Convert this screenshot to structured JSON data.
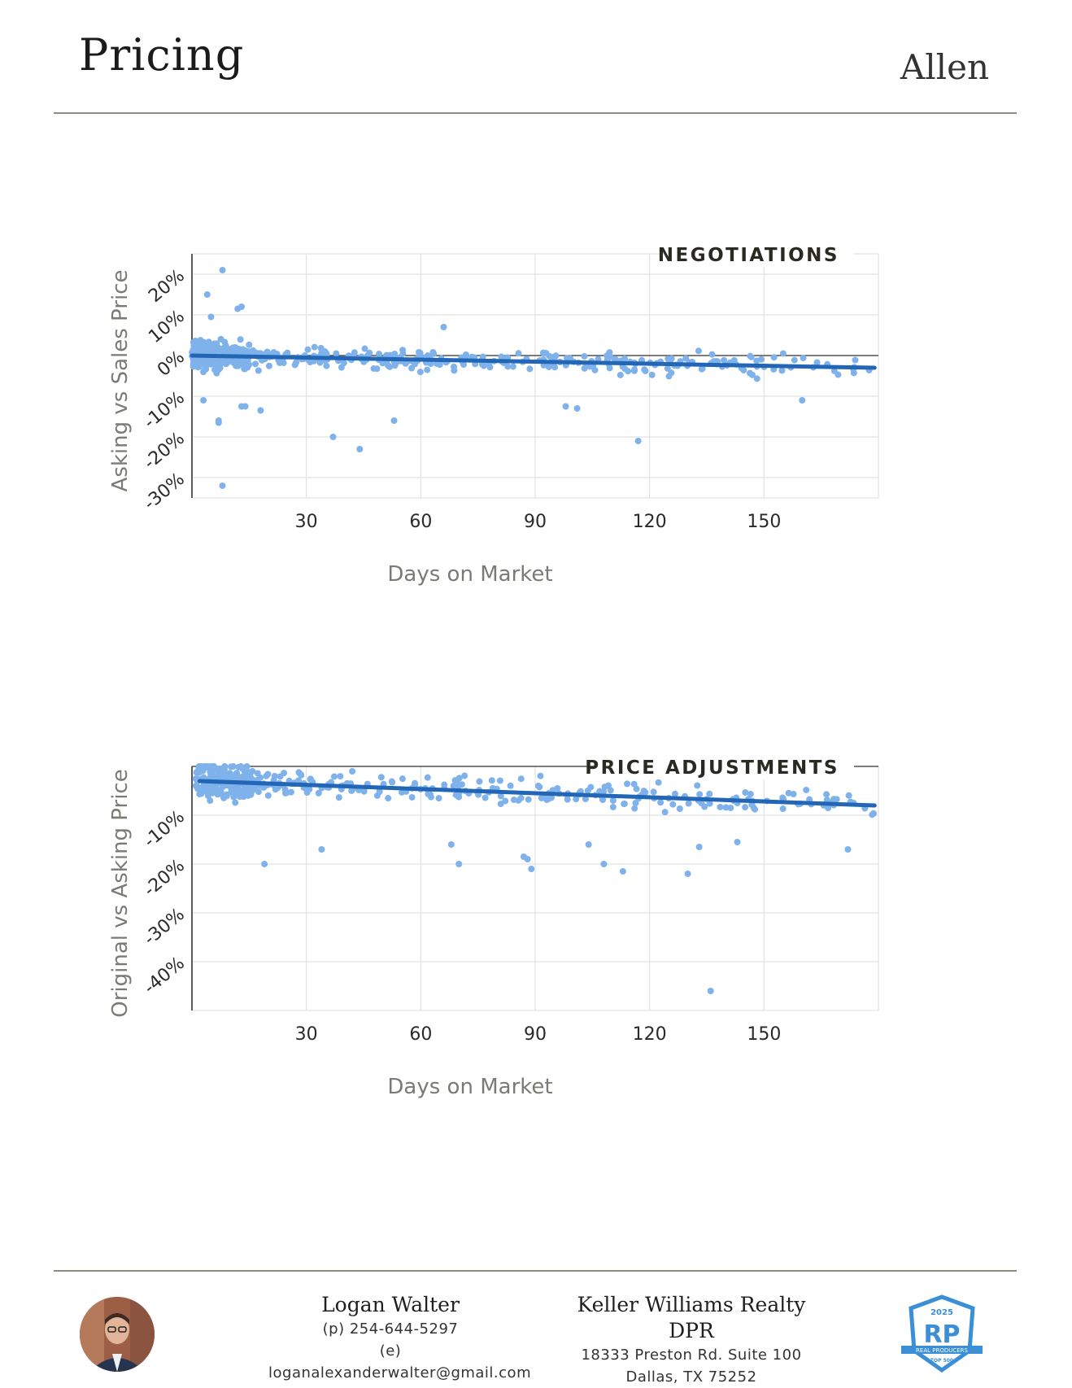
{
  "header": {
    "title": "Pricing",
    "city": "Allen"
  },
  "chart_data": [
    {
      "type": "scatter",
      "title": "NEGOTIATIONS",
      "xlabel": "Days on Market",
      "ylabel": "Asking vs Sales Price",
      "xlim": [
        0,
        180
      ],
      "ylim": [
        -35,
        25
      ],
      "xticks": [
        30,
        60,
        90,
        120,
        150
      ],
      "xtick_labels": [
        "30",
        "60",
        "90",
        "120",
        "150"
      ],
      "yticks": [
        20,
        10,
        0,
        -10,
        -20,
        -30
      ],
      "ytick_labels": [
        "20%",
        "10%",
        "0%",
        "-10%",
        "-20%",
        "-30%"
      ],
      "grid": true,
      "point_color": "#7fb2ea",
      "trend_color": "#2266b5",
      "trend": {
        "x": [
          0,
          179
        ],
        "y": [
          0,
          -3
        ]
      },
      "outliers": [
        {
          "x": 8,
          "y": 21
        },
        {
          "x": 4,
          "y": 15
        },
        {
          "x": 12,
          "y": 11.5
        },
        {
          "x": 13,
          "y": 12
        },
        {
          "x": 5,
          "y": 9.5
        },
        {
          "x": 8,
          "y": -32
        },
        {
          "x": 37,
          "y": -20
        },
        {
          "x": 44,
          "y": -23
        },
        {
          "x": 117,
          "y": -21
        },
        {
          "x": 53,
          "y": -16
        },
        {
          "x": 7,
          "y": -16
        },
        {
          "x": 7,
          "y": -16.5
        },
        {
          "x": 18,
          "y": -13.5
        },
        {
          "x": 13,
          "y": -12.5
        },
        {
          "x": 14,
          "y": -12.5
        },
        {
          "x": 3,
          "y": -11
        },
        {
          "x": 98,
          "y": -12.5
        },
        {
          "x": 101,
          "y": -13
        },
        {
          "x": 160,
          "y": -11
        },
        {
          "x": 66,
          "y": 7
        }
      ],
      "cluster": {
        "count": 520,
        "seed": 7,
        "x_range": [
          0,
          179
        ],
        "y_center": 0,
        "y_spread": 5
      }
    },
    {
      "type": "scatter",
      "title": "PRICE ADJUSTMENTS",
      "xlabel": "Days on Market",
      "ylabel": "Original vs Asking Price",
      "xlim": [
        0,
        180
      ],
      "ylim": [
        -50,
        0
      ],
      "xticks": [
        30,
        60,
        90,
        120,
        150
      ],
      "xtick_labels": [
        "30",
        "60",
        "90",
        "120",
        "150"
      ],
      "yticks": [
        -10,
        -20,
        -30,
        -40
      ],
      "ytick_labels": [
        "-10%",
        "-20%",
        "-30%",
        "-40%"
      ],
      "grid": true,
      "point_color": "#7fb2ea",
      "trend_color": "#2266b5",
      "trend": {
        "x": [
          2,
          179
        ],
        "y": [
          -3,
          -8
        ]
      },
      "outliers": [
        {
          "x": 136,
          "y": -46
        },
        {
          "x": 19,
          "y": -20
        },
        {
          "x": 70,
          "y": -20
        },
        {
          "x": 108,
          "y": -20
        },
        {
          "x": 113,
          "y": -21.5
        },
        {
          "x": 130,
          "y": -22
        },
        {
          "x": 89,
          "y": -21
        },
        {
          "x": 88,
          "y": -19
        },
        {
          "x": 87,
          "y": -18.5
        },
        {
          "x": 68,
          "y": -16
        },
        {
          "x": 34,
          "y": -17
        },
        {
          "x": 133,
          "y": -16.5
        },
        {
          "x": 172,
          "y": -17
        },
        {
          "x": 143,
          "y": -15.5
        },
        {
          "x": 104,
          "y": -16
        }
      ],
      "cluster": {
        "count": 420,
        "seed": 19,
        "x_range": [
          1,
          179
        ],
        "y_center": -4,
        "y_spread": 6
      }
    }
  ],
  "footer": {
    "agent_name": "Logan Walter",
    "phone": "(p) 254-644-5297",
    "email": "(e) loganalexanderwalter@gmail.com",
    "company": "Keller Williams Realty DPR",
    "address1": "18333 Preston Rd. Suite 100",
    "address2": "Dallas, TX 75252",
    "badge_year": "2025",
    "badge_initials": "RP",
    "badge_ribbon": "REAL PRODUCERS",
    "badge_sub": "TOP 500"
  }
}
